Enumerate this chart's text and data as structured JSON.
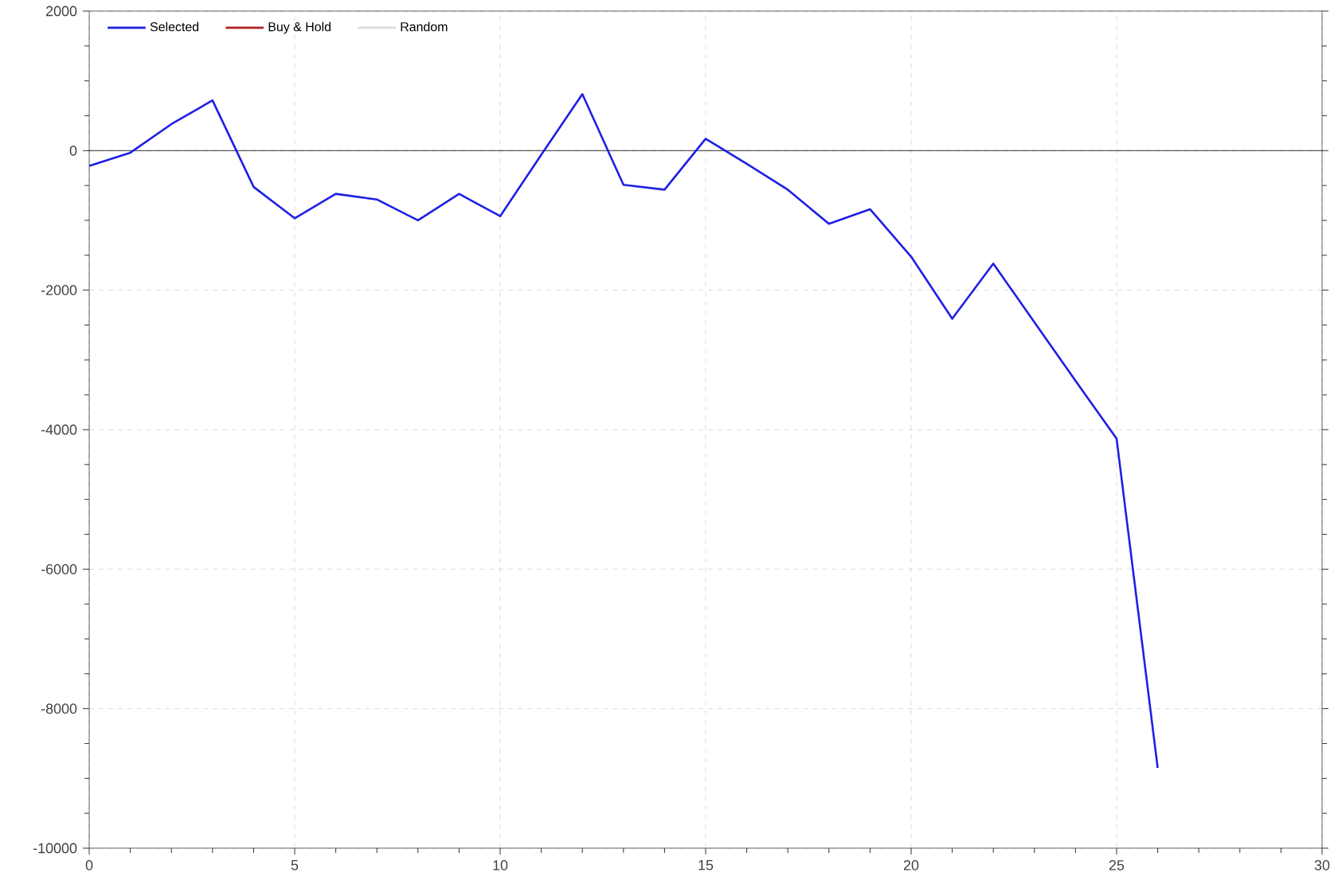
{
  "chart_data": {
    "type": "line",
    "x": [
      0,
      1,
      2,
      3,
      4,
      5,
      6,
      7,
      8,
      9,
      10,
      11,
      12,
      13,
      14,
      15,
      16,
      17,
      18,
      19,
      20,
      21,
      22,
      23,
      24,
      25,
      26
    ],
    "series": [
      {
        "name": "Selected",
        "color": "#1f1fe6",
        "values": [
          -220,
          -30,
          380,
          720,
          -520,
          -970,
          -620,
          -700,
          -1000,
          -620,
          -940,
          -60,
          810,
          -490,
          -560,
          170,
          -190,
          -560,
          -1050,
          -840,
          -1520,
          -2410,
          -1620,
          -2460,
          -3300,
          -4130,
          -8850
        ]
      },
      {
        "name": "Buy & Hold",
        "color": "#b22222",
        "values": [
          null,
          null,
          null,
          null,
          null,
          null,
          null,
          null,
          null,
          null,
          null,
          null,
          null,
          null,
          null,
          null,
          null,
          null,
          null,
          null,
          null,
          null,
          null,
          null,
          null,
          null,
          null
        ]
      },
      {
        "name": "Random",
        "color": "#dcdcdc",
        "values": [
          null,
          null,
          null,
          null,
          null,
          null,
          null,
          null,
          null,
          null,
          null,
          null,
          null,
          null,
          null,
          null,
          null,
          null,
          null,
          null,
          null,
          null,
          null,
          null,
          null,
          null,
          null
        ]
      }
    ],
    "xlim": [
      0,
      30
    ],
    "ylim": [
      -10000,
      2000
    ],
    "xticks": [
      0,
      5,
      10,
      15,
      20,
      25,
      30
    ],
    "yticks": [
      -10000,
      -8000,
      -6000,
      -4000,
      -2000,
      0,
      2000
    ],
    "ref_lines": [
      {
        "axis": "y",
        "value": 0,
        "color": "#000000"
      }
    ],
    "grid": true,
    "legend": "top left",
    "line_style": "solid",
    "marker": "none"
  }
}
